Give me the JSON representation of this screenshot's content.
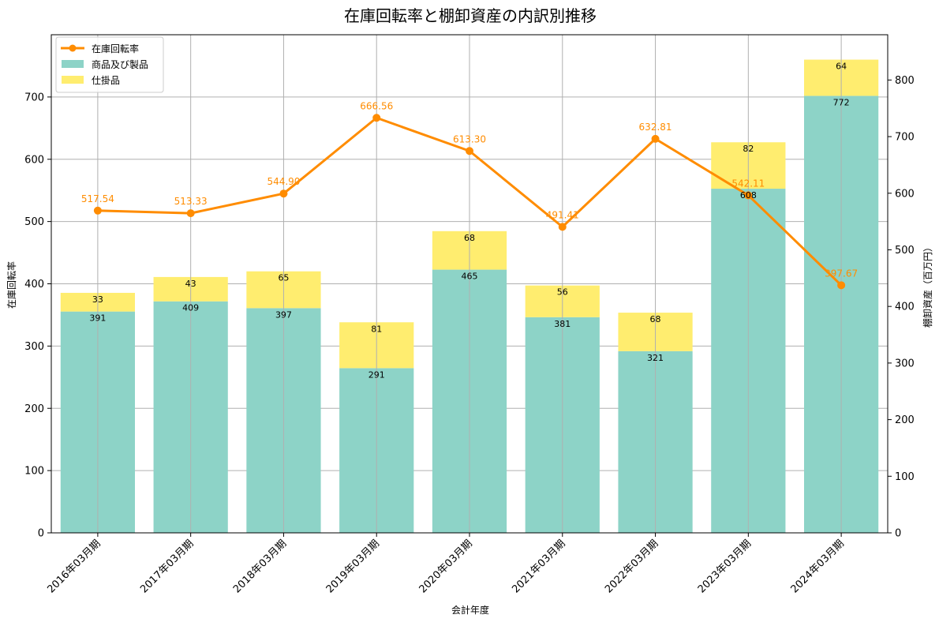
{
  "chart_data": {
    "type": "bar+line",
    "title": "在庫回転率と棚卸資産の内訳別推移",
    "xlabel": "会計年度",
    "ylabel_left": "在庫回転率",
    "ylabel_right": "棚卸資産（百万円）",
    "categories": [
      "2016年03月期",
      "2017年03月期",
      "2018年03月期",
      "2019年03月期",
      "2020年03月期",
      "2021年03月期",
      "2022年03月期",
      "2023年03月期",
      "2024年03月期"
    ],
    "ylim_left": [
      0,
      800
    ],
    "ylim_right": [
      0,
      880
    ],
    "yticks_left": [
      0,
      100,
      200,
      300,
      400,
      500,
      600,
      700
    ],
    "yticks_right": [
      0,
      100,
      200,
      300,
      400,
      500,
      600,
      700,
      800
    ],
    "grid": true,
    "legend_position": "top-left",
    "series": [
      {
        "name": "在庫回転率",
        "kind": "line",
        "axis": "left",
        "color": "#ff8c00",
        "values": [
          517.54,
          513.33,
          544.9,
          666.56,
          613.3,
          491.41,
          632.81,
          542.11,
          397.67
        ],
        "labels": [
          "517.54",
          "513.33",
          "544.90",
          "666.56",
          "613.30",
          "491.41",
          "632.81",
          "542.11",
          "397.67"
        ]
      },
      {
        "name": "商品及び製品",
        "kind": "bar",
        "axis": "right",
        "color": "#8dd3c7",
        "values": [
          391,
          409,
          397,
          291,
          465,
          381,
          321,
          608,
          772
        ],
        "labels": [
          "391",
          "409",
          "397",
          "291",
          "465",
          "381",
          "321",
          "608",
          "772"
        ]
      },
      {
        "name": "仕掛品",
        "kind": "bar",
        "axis": "right",
        "color": "#ffed6f",
        "values": [
          33,
          43,
          65,
          81,
          68,
          56,
          68,
          82,
          64
        ],
        "labels": [
          "33",
          "43",
          "65",
          "81",
          "68",
          "56",
          "68",
          "82",
          "64"
        ]
      }
    ]
  }
}
